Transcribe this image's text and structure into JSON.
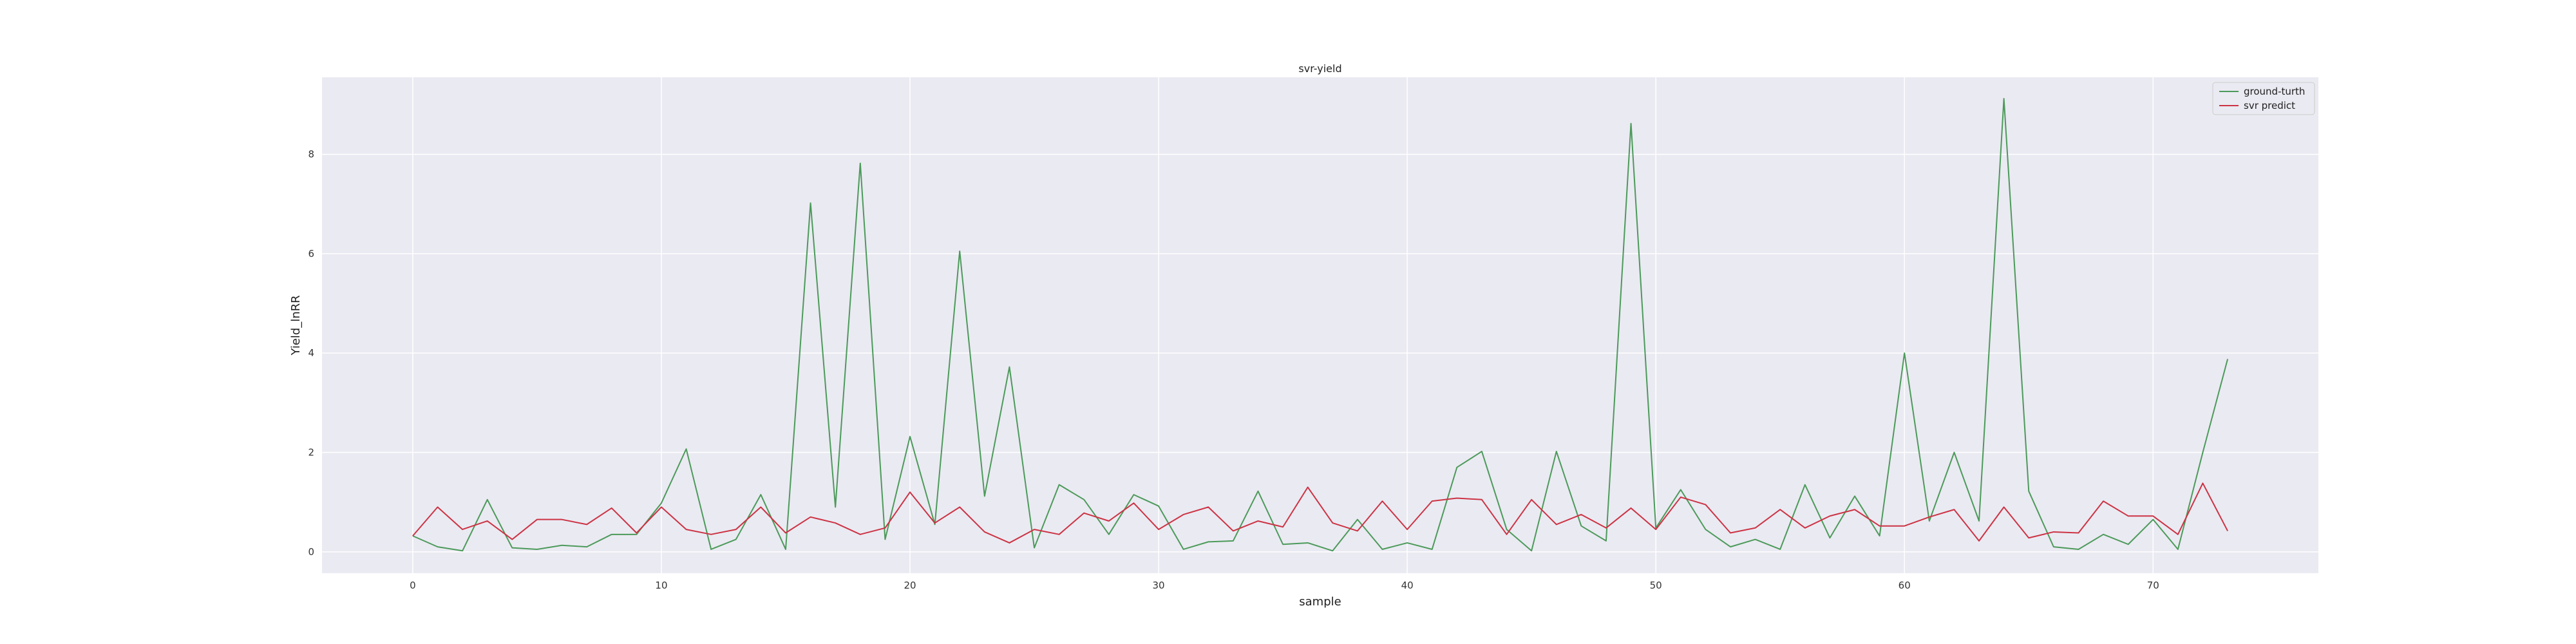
{
  "chart_data": {
    "type": "line",
    "title": "svr-yield",
    "xlabel": "sample",
    "ylabel": "Yield_lnRR",
    "xlim": [
      -3.65,
      76.65
    ],
    "ylim": [
      -0.43,
      9.55
    ],
    "xticks": [
      0,
      10,
      20,
      30,
      40,
      50,
      60,
      70
    ],
    "yticks": [
      0,
      2,
      4,
      6,
      8
    ],
    "grid": true,
    "legend": "top-right",
    "series": [
      {
        "name": "ground-turth",
        "color": "#4c9a5a",
        "values": [
          0.32,
          0.1,
          0.02,
          1.05,
          0.08,
          0.05,
          0.13,
          0.1,
          0.35,
          0.35,
          0.98,
          2.07,
          0.05,
          0.25,
          1.15,
          0.05,
          7.02,
          0.9,
          7.82,
          0.25,
          2.32,
          0.55,
          6.05,
          1.12,
          3.72,
          0.08,
          1.35,
          1.05,
          0.35,
          1.15,
          0.92,
          0.05,
          0.2,
          0.22,
          1.22,
          0.15,
          0.18,
          0.02,
          0.65,
          0.05,
          0.18,
          0.05,
          1.7,
          2.02,
          0.45,
          0.02,
          2.02,
          0.52,
          0.22,
          8.62,
          0.48,
          1.25,
          0.45,
          0.1,
          0.25,
          0.05,
          1.35,
          0.28,
          1.12,
          0.32,
          4.0,
          0.62,
          2.0,
          0.62,
          9.12,
          1.22,
          0.1,
          0.05,
          0.35,
          0.15,
          0.65,
          0.05,
          2.0,
          3.88
        ]
      },
      {
        "name": "svr predict",
        "color": "#cc3344",
        "values": [
          0.32,
          0.9,
          0.45,
          0.62,
          0.25,
          0.65,
          0.65,
          0.55,
          0.88,
          0.38,
          0.9,
          0.45,
          0.35,
          0.45,
          0.9,
          0.38,
          0.7,
          0.58,
          0.35,
          0.48,
          1.2,
          0.58,
          0.9,
          0.4,
          0.18,
          0.45,
          0.35,
          0.78,
          0.62,
          0.98,
          0.45,
          0.75,
          0.9,
          0.42,
          0.62,
          0.5,
          1.3,
          0.58,
          0.42,
          1.02,
          0.45,
          1.02,
          1.08,
          1.05,
          0.35,
          1.05,
          0.55,
          0.75,
          0.48,
          0.88,
          0.45,
          1.1,
          0.95,
          0.38,
          0.48,
          0.85,
          0.48,
          0.72,
          0.85,
          0.52,
          0.52,
          0.7,
          0.85,
          0.22,
          0.9,
          0.28,
          0.4,
          0.38,
          1.02,
          0.72,
          0.72,
          0.35,
          1.38,
          0.42
        ]
      }
    ]
  }
}
